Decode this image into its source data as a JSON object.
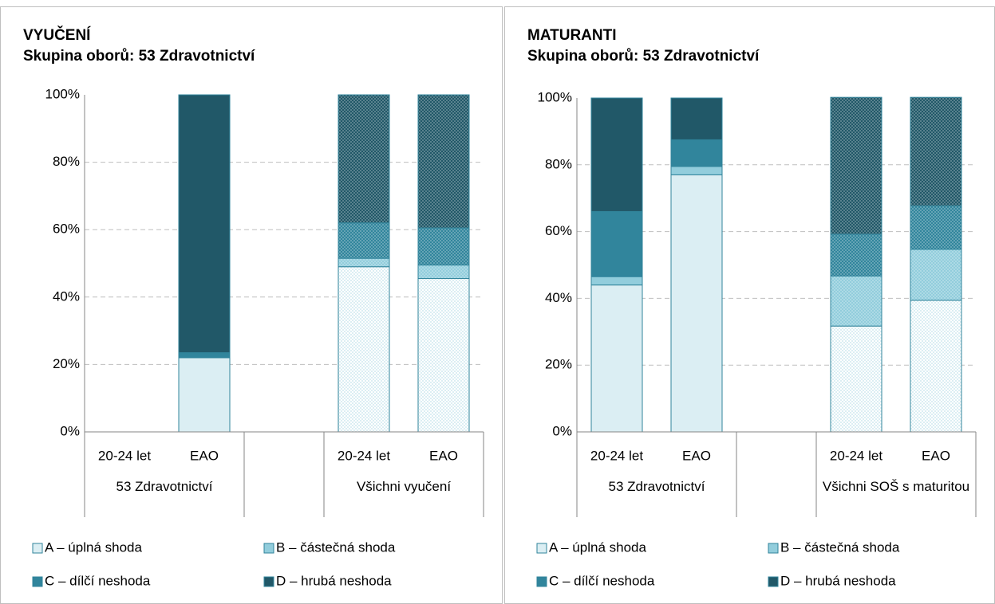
{
  "chart_data": [
    {
      "type": "stacked_bar",
      "title": "VYUČENÍ",
      "subtitle": "Skupina oborů: 53 Zdravotnictví",
      "categories": [
        "20-24 let",
        "EAO",
        null,
        "20-24 let",
        "EAO"
      ],
      "groups": [
        "53 Zdravotnictví",
        "Všichni vyučení"
      ],
      "dotted": [
        false,
        false,
        false,
        true,
        true
      ],
      "ylim": [
        0,
        100
      ],
      "yticks": [
        {
          "value": 0,
          "label": "0%"
        },
        {
          "value": 20,
          "label": "20%"
        },
        {
          "value": 40,
          "label": "40%"
        },
        {
          "value": 60,
          "label": "60%"
        },
        {
          "value": 80,
          "label": "80%"
        },
        {
          "value": 100,
          "label": "100%"
        }
      ],
      "grid": true,
      "series": [
        {
          "name": "A – úplná shoda",
          "color": "#dbeef3",
          "values": [
            null,
            22,
            null,
            49,
            45.5
          ]
        },
        {
          "name": "B – částečná shoda",
          "color": "#92cddc",
          "values": [
            null,
            0,
            null,
            2.5,
            4
          ]
        },
        {
          "name": "C – dílčí neshoda",
          "color": "#31859c",
          "values": [
            null,
            1.5,
            null,
            10.5,
            11
          ]
        },
        {
          "name": "D – hrubá neshoda",
          "color": "#215868",
          "values": [
            null,
            76.5,
            null,
            38,
            39.5
          ]
        }
      ]
    },
    {
      "type": "stacked_bar",
      "title": "MATURANTI",
      "subtitle": "Skupina oborů: 53 Zdravotnictví",
      "categories": [
        "20-24 let",
        "EAO",
        null,
        "20-24 let",
        "EAO"
      ],
      "groups": [
        "53 Zdravotnictví",
        "Všichni SOŠ s maturitou"
      ],
      "dotted": [
        false,
        false,
        false,
        true,
        true
      ],
      "ylim": [
        0,
        100
      ],
      "yticks": [
        {
          "value": 0,
          "label": "0%"
        },
        {
          "value": 20,
          "label": "20%"
        },
        {
          "value": 40,
          "label": "40%"
        },
        {
          "value": 60,
          "label": "60%"
        },
        {
          "value": 80,
          "label": "80%"
        },
        {
          "value": 100,
          "label": "100%"
        }
      ],
      "grid": true,
      "series": [
        {
          "name": "A – úplná shoda",
          "color": "#dbeef3",
          "values": [
            44,
            77,
            null,
            31.7,
            39.4
          ]
        },
        {
          "name": "B – částečná shoda",
          "color": "#92cddc",
          "values": [
            2.5,
            2.5,
            null,
            15,
            15.3
          ]
        },
        {
          "name": "C – dílčí neshoda",
          "color": "#31859c",
          "values": [
            19.5,
            8,
            null,
            12.5,
            13
          ]
        },
        {
          "name": "D – hrubá neshoda",
          "color": "#215868",
          "values": [
            34,
            12.5,
            null,
            41,
            32.5
          ]
        }
      ]
    }
  ]
}
